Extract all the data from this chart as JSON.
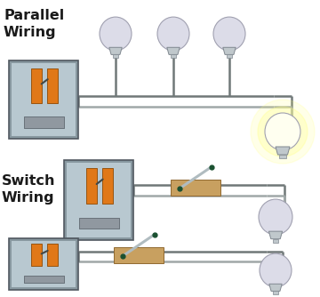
{
  "bg_color": "#ffffff",
  "text_parallel": "Parallel\nWiring",
  "text_switch": "Switch\nWiring",
  "text_color": "#1a1a1a",
  "wire_dark": "#707878",
  "wire_light": "#a0a8a8",
  "panel_outer": "#8898a0",
  "panel_inner": "#b8c8d0",
  "panel_edge": "#505860",
  "orange": "#e07818",
  "orange_dark": "#904800",
  "tan_base": "#c8a060",
  "tan_dark": "#906830",
  "screw_color": "#9098a0",
  "screw_dark": "#606870",
  "bulb_off_fill": "#dcdce8",
  "bulb_off_edge": "#a0a0b0",
  "bulb_on_fill": "#fffff0",
  "bulb_on_glow": "#ffff80",
  "bulb_base_fill": "#c0c8cc",
  "bulb_base_edge": "#808890",
  "switch_blade": "#b0bcc0",
  "switch_tip": "#1a5030",
  "knob_color": "#404848"
}
